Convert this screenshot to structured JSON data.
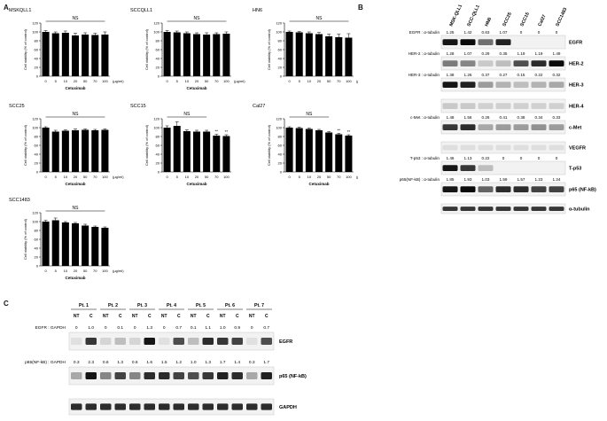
{
  "panels": {
    "a": "A",
    "b": "B",
    "c": "C"
  },
  "chart_data": [
    {
      "type": "bar",
      "title": "MSKQLL1",
      "ylabel": "Cell viability (% of control)",
      "xlabel": "Cetuximab",
      "unit": "(μg/ml)",
      "ylim": [
        0,
        120
      ],
      "yticks": [
        0,
        20,
        40,
        60,
        80,
        100,
        120
      ],
      "categories": [
        "0",
        "5",
        "10",
        "20",
        "50",
        "70",
        "100"
      ],
      "values": [
        100,
        97,
        98,
        92,
        94,
        93,
        94
      ],
      "errors": [
        3,
        3,
        4,
        5,
        4,
        4,
        6
      ],
      "annotation": "NS",
      "star": []
    },
    {
      "type": "bar",
      "title": "SCCQLL1",
      "ylabel": "Cell viability (% of control)",
      "xlabel": "Cetuximab",
      "unit": "(μg/ml)",
      "ylim": [
        0,
        120
      ],
      "yticks": [
        0,
        20,
        40,
        60,
        80,
        100,
        120
      ],
      "categories": [
        "0",
        "5",
        "10",
        "20",
        "50",
        "70",
        "100"
      ],
      "values": [
        100,
        99,
        97,
        95,
        94,
        95,
        96
      ],
      "errors": [
        3,
        3,
        3,
        3,
        4,
        3,
        4
      ],
      "annotation": "NS",
      "star": []
    },
    {
      "type": "bar",
      "title": "HN6",
      "ylabel": "Cell viability (% of control)",
      "xlabel": "",
      "unit": "(μg/ml)",
      "ylim": [
        0,
        120
      ],
      "yticks": [
        0,
        20,
        40,
        60,
        80,
        100,
        120
      ],
      "categories": [
        "0",
        "5",
        "10",
        "20",
        "50",
        "70",
        "100"
      ],
      "values": [
        100,
        99,
        97,
        95,
        90,
        88,
        87
      ],
      "errors": [
        2,
        2,
        3,
        4,
        5,
        7,
        9
      ],
      "annotation": "NS",
      "star": []
    },
    {
      "type": "bar",
      "title": "SCC25",
      "ylabel": "Cell viability (% of control)",
      "xlabel": "Cetuximab",
      "unit": "(μg/ml)",
      "ylim": [
        0,
        120
      ],
      "yticks": [
        0,
        20,
        40,
        60,
        80,
        100,
        120
      ],
      "categories": [
        "0",
        "5",
        "10",
        "20",
        "50",
        "70",
        "100"
      ],
      "values": [
        100,
        91,
        93,
        94,
        95,
        94,
        95
      ],
      "errors": [
        2,
        3,
        2,
        3,
        2,
        2,
        2
      ],
      "annotation": "NS",
      "star": []
    },
    {
      "type": "bar",
      "title": "SCC15",
      "ylabel": "Cell viability (% of control)",
      "xlabel": "Cetuximab",
      "unit": "",
      "ylim": [
        0,
        120
      ],
      "yticks": [
        0,
        20,
        40,
        60,
        80,
        100,
        120
      ],
      "categories": [
        "0",
        "5",
        "10",
        "20",
        "50",
        "70",
        "100"
      ],
      "values": [
        100,
        104,
        92,
        91,
        91,
        82,
        81
      ],
      "errors": [
        4,
        9,
        3,
        3,
        3,
        3,
        3
      ],
      "annotation": "NS",
      "star": [
        "",
        "",
        "",
        "",
        "",
        "**",
        "**"
      ]
    },
    {
      "type": "bar",
      "title": "Cal27",
      "ylabel": "Cell viability (% of control)",
      "xlabel": "Cetuximab",
      "unit": "(μg/ml)",
      "ylim": [
        0,
        120
      ],
      "yticks": [
        0,
        20,
        40,
        60,
        80,
        100,
        120
      ],
      "categories": [
        "0",
        "5",
        "10",
        "20",
        "50",
        "70",
        "100"
      ],
      "values": [
        100,
        99,
        97,
        94,
        89,
        85,
        82
      ],
      "errors": [
        2,
        2,
        2,
        2,
        2,
        2,
        2
      ],
      "annotation": "NS",
      "star": [
        "",
        "",
        "",
        "",
        "",
        "**",
        "**"
      ]
    },
    {
      "type": "bar",
      "title": "SCC1483",
      "ylabel": "Cell viability (% of control)",
      "xlabel": "Cetuximab",
      "unit": "(μg/ml)",
      "ylim": [
        0,
        120
      ],
      "yticks": [
        0,
        20,
        40,
        60,
        80,
        100,
        120
      ],
      "categories": [
        "0",
        "5",
        "10",
        "20",
        "50",
        "70",
        "100"
      ],
      "values": [
        100,
        103,
        98,
        96,
        91,
        88,
        86
      ],
      "errors": [
        3,
        5,
        2,
        2,
        3,
        2,
        2
      ],
      "annotation": "NS",
      "star": []
    }
  ],
  "blotB": {
    "lanes": [
      "MSK-QLL1",
      "SCC-QLL1",
      "HN6",
      "SCC25",
      "SCC15",
      "Cal27",
      "SCC1483"
    ],
    "rows": [
      {
        "label": "EGFR : α-tubulin",
        "values": [
          "1.25",
          "1.42",
          "0.63",
          "1.07",
          "0",
          "0",
          "0"
        ],
        "protein": "EGFR",
        "bands": [
          0.95,
          1,
          0.55,
          0.9,
          0,
          0,
          0
        ]
      },
      {
        "label": "HER-2 : α-tubulin",
        "values": [
          "1.28",
          "1.07",
          "0.29",
          "0.35",
          "1.19",
          "1.19",
          "1.49"
        ],
        "protein": "HER-2",
        "bands": [
          0.5,
          0.45,
          0.15,
          0.2,
          0.7,
          0.85,
          1
        ]
      },
      {
        "label": "HER-3 : α-tubulin",
        "values": [
          "1.38",
          "1.26",
          "0.37",
          "0.27",
          "0.15",
          "0.22",
          "0.32"
        ],
        "protein": "HER-3",
        "bands": [
          0.95,
          0.9,
          0.35,
          0.25,
          0.2,
          0.25,
          0.3
        ]
      },
      {
        "label": "",
        "values": [],
        "protein": "HER-4",
        "bands": [
          0.15,
          0.15,
          0.12,
          0.12,
          0.12,
          0.12,
          0.12
        ]
      },
      {
        "label": "c-Met : α-tubulin",
        "values": [
          "1.48",
          "1.56",
          "0.26",
          "0.41",
          "0.38",
          "0.34",
          "0.33"
        ],
        "protein": "c-Met",
        "bands": [
          0.8,
          0.85,
          0.3,
          0.35,
          0.35,
          0.4,
          0.35
        ]
      },
      {
        "label": "",
        "values": [],
        "protein": "VEGFR",
        "bands": [
          0.06,
          0.06,
          0.06,
          0.06,
          0.06,
          0.06,
          0.06
        ]
      },
      {
        "label": "T-p53 : α-tubulin",
        "values": [
          "1.46",
          "1.13",
          "0.22",
          "0",
          "0",
          "0",
          "0"
        ],
        "protein": "T-p53",
        "bands": [
          0.95,
          0.8,
          0.2,
          0,
          0,
          0,
          0
        ]
      },
      {
        "label": "p65(NF-kB) : α-tubulin",
        "values": [
          "1.85",
          "1.93",
          "1.03",
          "1.59",
          "1.57",
          "1.23",
          "1.24"
        ],
        "protein": "p65 (NF-kB)",
        "bands": [
          0.95,
          1,
          0.6,
          0.85,
          0.85,
          0.75,
          0.75
        ]
      },
      {
        "label": "",
        "values": [],
        "protein": "α-tubulin",
        "bands": [
          0.8,
          0.8,
          0.8,
          0.8,
          0.8,
          0.8,
          0.8
        ]
      }
    ]
  },
  "blotC": {
    "patients": [
      "Pt. 1",
      "Pt. 2",
      "Pt. 3",
      "Pt. 4",
      "Pt. 5",
      "Pt. 6",
      "Pt. 7"
    ],
    "sub": [
      "NT",
      "C"
    ],
    "egfr_label": "EGFR : GAPDH",
    "egfr_values": [
      "0",
      "1.0",
      "0",
      "0.1",
      "0",
      "1.3",
      "0",
      "0.7",
      "0.1",
      "1.1",
      "1.0",
      "0.9",
      "0",
      "0.7"
    ],
    "p65_label": "p65(NF-kB) : GAPDH",
    "p65_values": [
      "0.3",
      "2.3",
      "0.6",
      "1.3",
      "0.6",
      "1.6",
      "1.5",
      "1.2",
      "1.0",
      "1.3",
      "1.7",
      "1.4",
      "0.3",
      "1.7"
    ],
    "proteins": [
      "EGFR",
      "p65 (NF-kB)",
      "GAPDH"
    ],
    "egfr_bands": [
      0.05,
      0.8,
      0.1,
      0.2,
      0.1,
      0.95,
      0.05,
      0.7,
      0.2,
      0.85,
      0.8,
      0.75,
      0.05,
      0.7
    ],
    "p65_bands": [
      0.3,
      0.95,
      0.45,
      0.75,
      0.45,
      0.85,
      0.85,
      0.75,
      0.7,
      0.8,
      0.9,
      0.85,
      0.3,
      0.9
    ],
    "gapdh_bands": [
      0.85,
      0.85,
      0.85,
      0.85,
      0.85,
      0.85,
      0.85,
      0.85,
      0.85,
      0.85,
      0.85,
      0.85,
      0.85,
      0.85
    ]
  }
}
